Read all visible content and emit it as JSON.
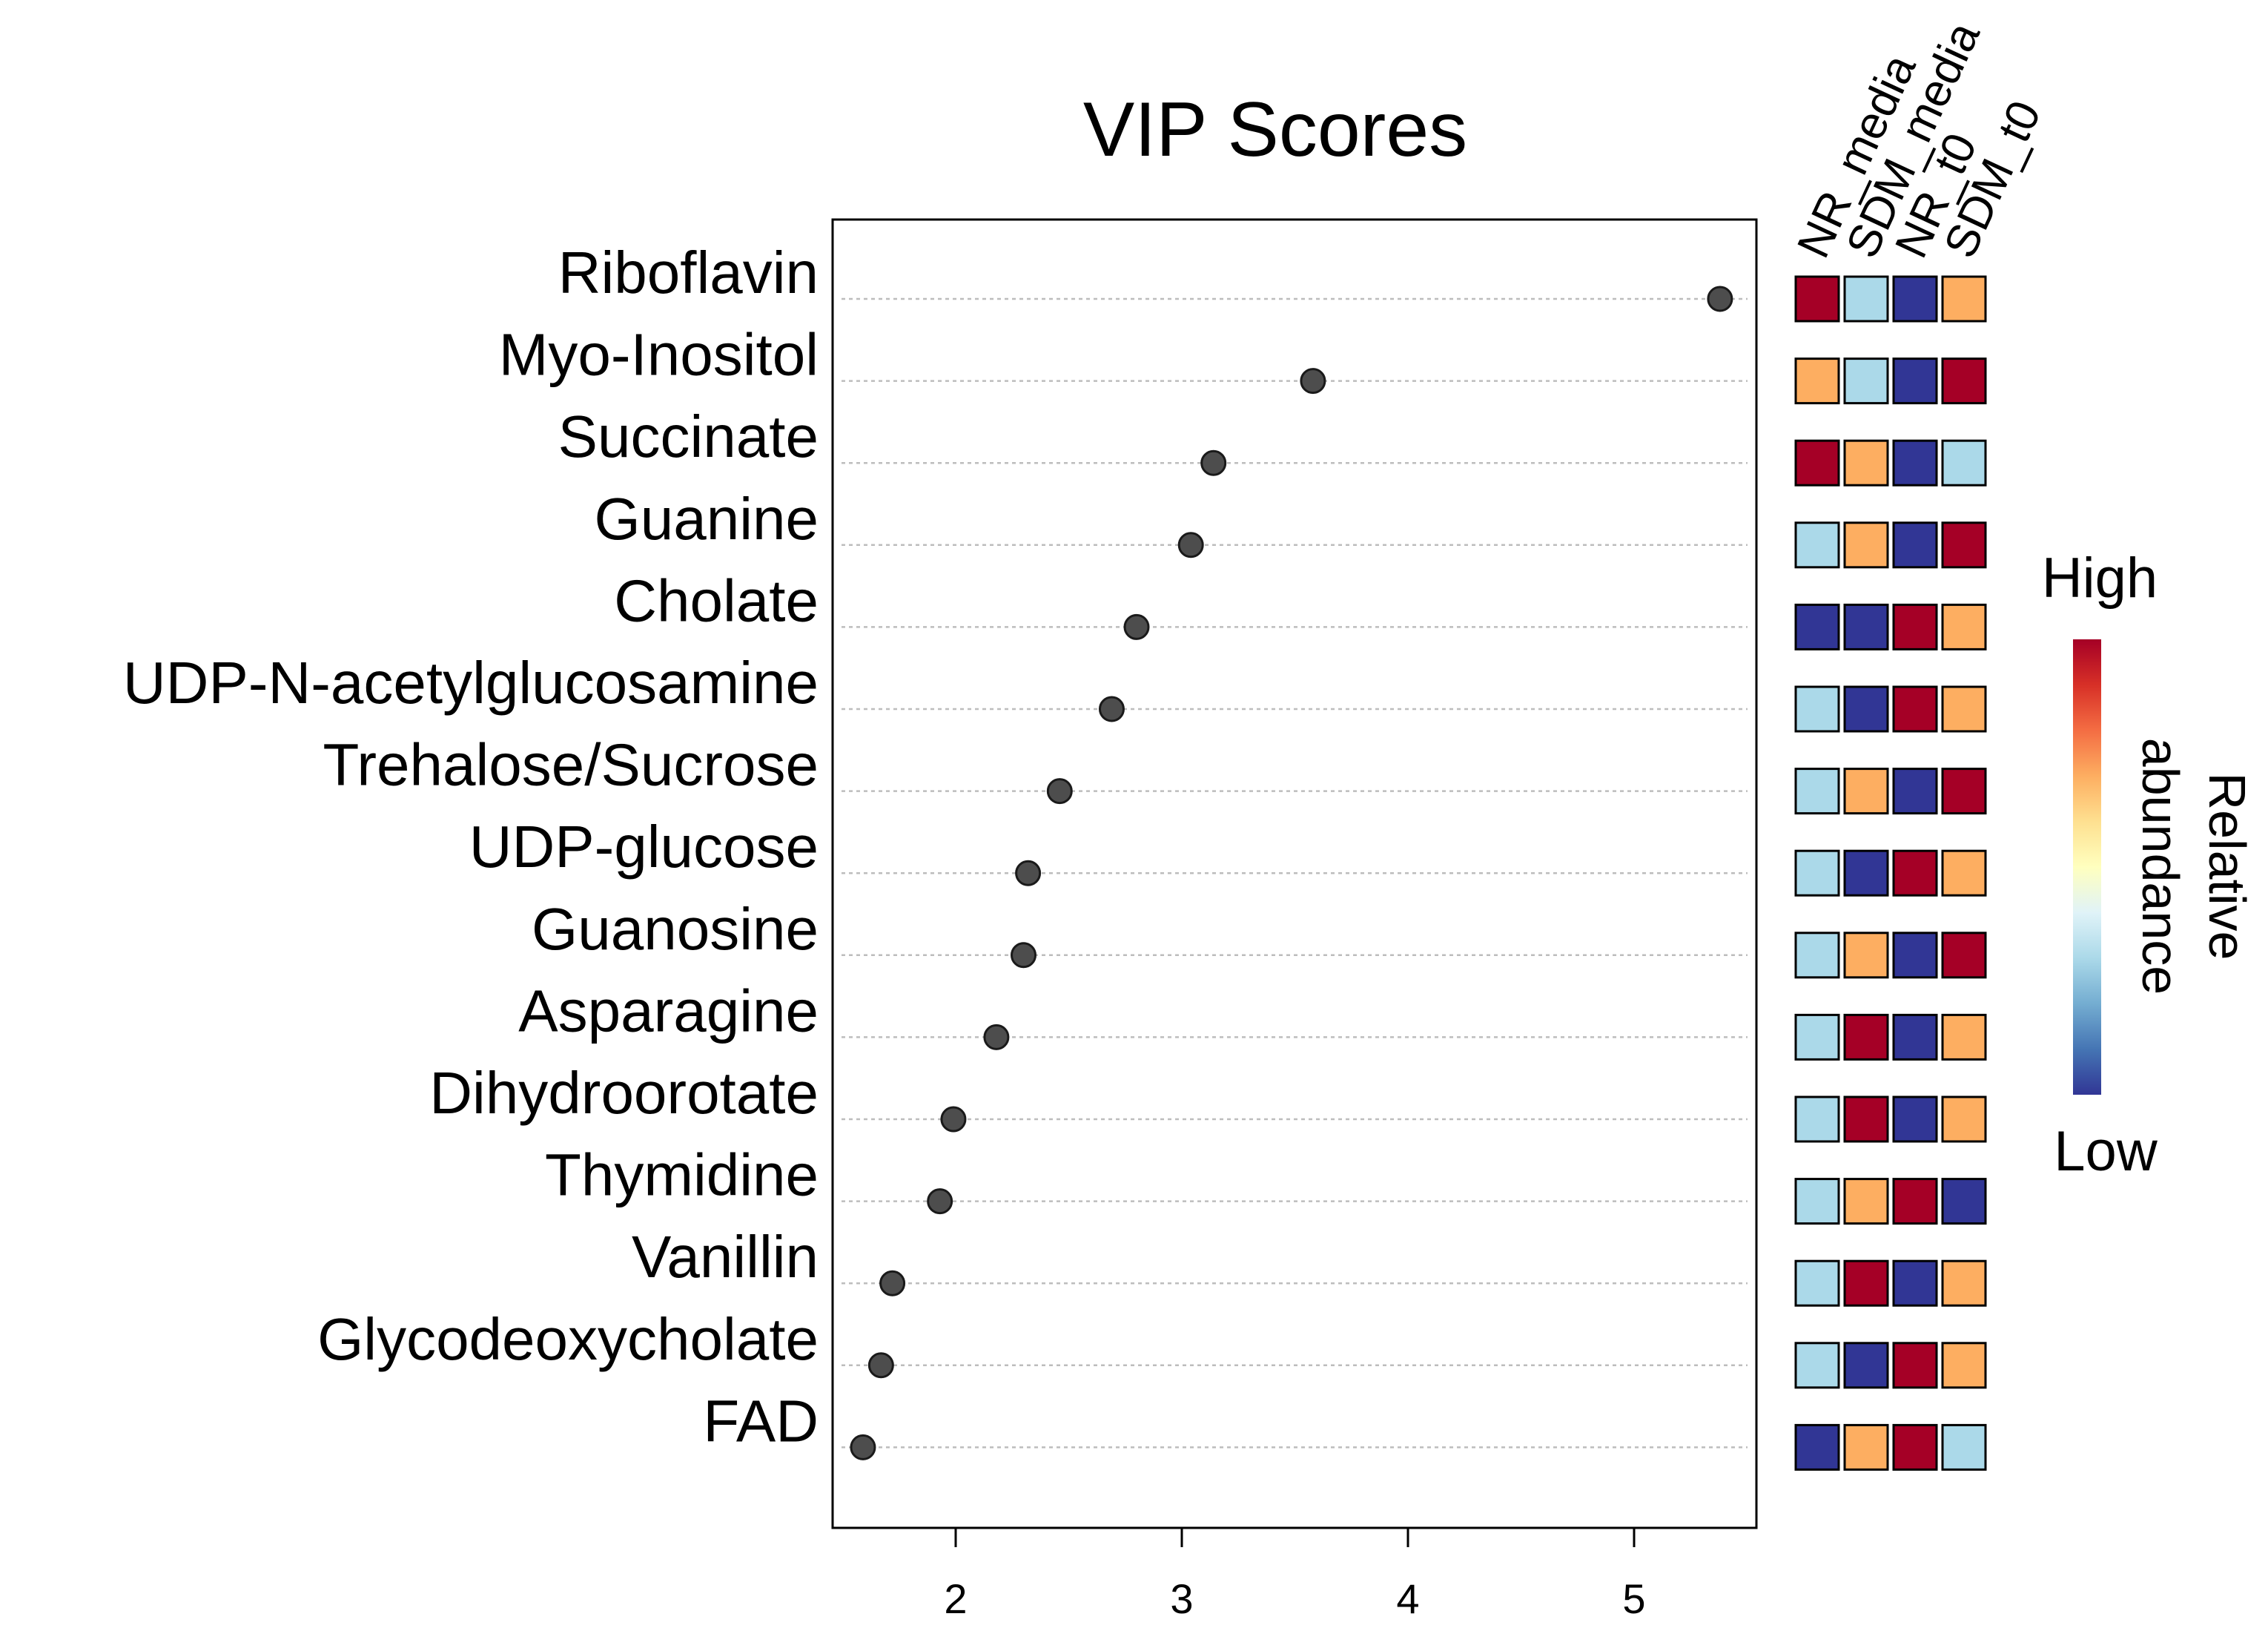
{
  "chart_data": {
    "type": "scatter",
    "title": "VIP Scores",
    "xlabel": "",
    "ylabel": "",
    "xlim": [
      1.4,
      5.55
    ],
    "xticks": [
      2,
      3,
      4,
      5
    ],
    "grid": "dotted horizontal",
    "metabolites": [
      "Riboflavin",
      "Myo-Inositol",
      "Succinate",
      "Guanine",
      "Cholate",
      "UDP-N-acetylglucosamine",
      "Trehalose/Sucrose",
      "UDP-glucose",
      "Guanosine",
      "Asparagine",
      "Dihydroorotate ",
      "Thymidine",
      "Vanillin",
      "Glycodeoxycholate",
      "FAD"
    ],
    "vip_scores": [
      5.38,
      3.58,
      3.14,
      3.04,
      2.8,
      2.69,
      2.46,
      2.32,
      2.3,
      2.18,
      1.99,
      1.93,
      1.72,
      1.67,
      1.59
    ],
    "heatmap": {
      "columns": [
        "NR_media",
        "SDM_media",
        "NR_t0",
        "SDM_t0"
      ],
      "levels": {
        "1": "#313695",
        "2": "#abd9e9",
        "3": "#fdae61",
        "4": "#a50026"
      },
      "rows": [
        [
          4,
          2,
          1,
          3
        ],
        [
          3,
          2,
          1,
          4
        ],
        [
          4,
          3,
          1,
          2
        ],
        [
          2,
          3,
          1,
          4
        ],
        [
          1,
          1,
          4,
          3
        ],
        [
          2,
          1,
          4,
          3
        ],
        [
          2,
          3,
          1,
          4
        ],
        [
          2,
          1,
          4,
          3
        ],
        [
          2,
          3,
          1,
          4
        ],
        [
          2,
          4,
          1,
          3
        ],
        [
          2,
          4,
          1,
          3
        ],
        [
          2,
          3,
          4,
          1
        ],
        [
          2,
          4,
          1,
          3
        ],
        [
          2,
          1,
          4,
          3
        ],
        [
          1,
          3,
          4,
          2
        ]
      ]
    },
    "legend": {
      "high_label": "High",
      "low_label": "Low",
      "title_line1": "Relative",
      "title_line2": "abundance",
      "gradient_colors": [
        "#a50026",
        "#d73027",
        "#f46d43",
        "#fdae61",
        "#fee090",
        "#ffffbf",
        "#e0f3f8",
        "#abd9e9",
        "#74add1",
        "#4575b4",
        "#313695"
      ]
    },
    "colors": {
      "point_fill": "#4d4d4d",
      "point_stroke": "#1a1a1a",
      "grid": "#bdbdbd",
      "axis": "#000000"
    }
  }
}
